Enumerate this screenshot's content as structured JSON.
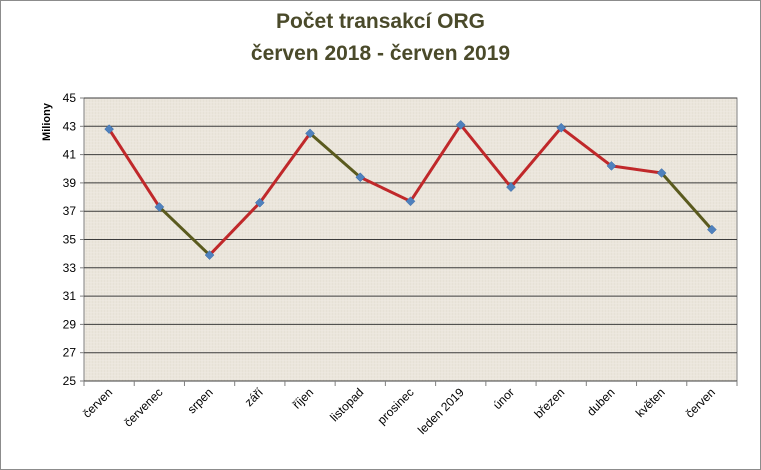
{
  "chart_data": {
    "type": "line",
    "title": "Počet transakcí ORG",
    "subtitle": "červen  2018 - červen 2019",
    "ylabel": "Miliony",
    "xlabel": "",
    "ylim": [
      25,
      45
    ],
    "yticks": [
      25,
      27,
      29,
      31,
      33,
      35,
      37,
      39,
      41,
      43,
      45
    ],
    "grid": true,
    "legend": "none",
    "categories": [
      "červen",
      "červenec",
      "srpen",
      "září",
      "říjen",
      "listopad",
      "prosinec",
      "leden 2019",
      "únor",
      "březen",
      "duben",
      "květen",
      "červen"
    ],
    "series": [
      {
        "values": [
          42.8,
          37.3,
          33.9,
          37.6,
          42.5,
          39.4,
          37.7,
          43.1,
          38.7,
          42.9,
          40.2,
          39.7,
          35.7
        ]
      }
    ],
    "colors": {
      "line_red": "#c0282a",
      "line_olive": "#5a5a1e",
      "marker": "#4f81bd",
      "grid": "#3c3c3c",
      "plot_bg": "#ebe6dc"
    }
  }
}
